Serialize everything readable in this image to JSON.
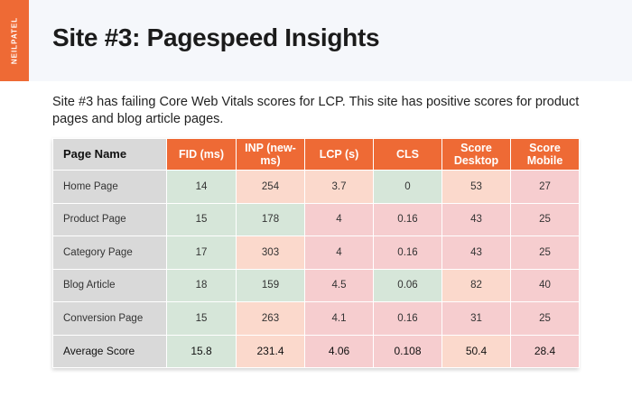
{
  "brand": "NEILPATEL",
  "title": "Site #3: Pagespeed Insights",
  "intro": "Site #3 has failing Core Web Vitals scores for LCP. This site has positive scores for product pages and blog article pages.",
  "table": {
    "headers": [
      "Page Name",
      "FID (ms)",
      "INP (new-ms)",
      "LCP (s)",
      "CLS",
      "Score Desktop",
      "Score Mobile"
    ],
    "rows": [
      {
        "name": "Home Page",
        "cells": [
          "14",
          "254",
          "3.7",
          "0",
          "53",
          "27"
        ],
        "status": [
          "good",
          "ok",
          "ok",
          "good",
          "ok",
          "bad"
        ]
      },
      {
        "name": "Product Page",
        "cells": [
          "15",
          "178",
          "4",
          "0.16",
          "43",
          "25"
        ],
        "status": [
          "good",
          "good",
          "bad",
          "bad",
          "bad",
          "bad"
        ]
      },
      {
        "name": "Category Page",
        "cells": [
          "17",
          "303",
          "4",
          "0.16",
          "43",
          "25"
        ],
        "status": [
          "good",
          "ok",
          "bad",
          "bad",
          "bad",
          "bad"
        ]
      },
      {
        "name": "Blog Article",
        "cells": [
          "18",
          "159",
          "4.5",
          "0.06",
          "82",
          "40"
        ],
        "status": [
          "good",
          "good",
          "bad",
          "good",
          "ok",
          "bad"
        ]
      },
      {
        "name": "Conversion Page",
        "cells": [
          "15",
          "263",
          "4.1",
          "0.16",
          "31",
          "25"
        ],
        "status": [
          "good",
          "ok",
          "bad",
          "bad",
          "bad",
          "bad"
        ]
      },
      {
        "name": "Average Score",
        "cells": [
          "15.8",
          "231.4",
          "4.06",
          "0.108",
          "50.4",
          "28.4"
        ],
        "status": [
          "good",
          "ok",
          "bad",
          "bad",
          "ok",
          "bad"
        ]
      }
    ]
  },
  "colors": {
    "accent": "#ee6a35",
    "good": "#d6e6d9",
    "needs_improvement": "#fbd9cc",
    "poor": "#f6cdcf",
    "name_column": "#d9d9d9"
  }
}
